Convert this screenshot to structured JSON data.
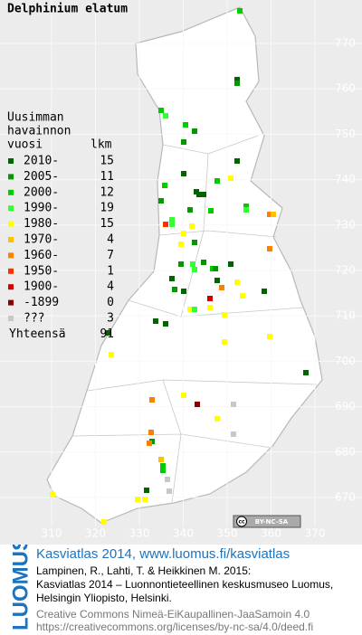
{
  "title": "Delphinium elatum",
  "legend": {
    "heading": [
      "Uusimman",
      "havainnon",
      "vuosi"
    ],
    "count_heading": "lkm",
    "rows": [
      {
        "label": "2010-",
        "count": 15,
        "color": "#006400"
      },
      {
        "label": "2005-",
        "count": 11,
        "color": "#009a00"
      },
      {
        "label": "2000-",
        "count": 12,
        "color": "#00cc00"
      },
      {
        "label": "1990-",
        "count": 19,
        "color": "#33ff33"
      },
      {
        "label": "1980-",
        "count": 15,
        "color": "#ffff00"
      },
      {
        "label": "1970-",
        "count": 4,
        "color": "#ffc000"
      },
      {
        "label": "1960-",
        "count": 7,
        "color": "#ff8000"
      },
      {
        "label": "1950-",
        "count": 1,
        "color": "#ff3000"
      },
      {
        "label": "1900-",
        "count": 4,
        "color": "#d00000"
      },
      {
        "label": "-1899",
        "count": 0,
        "color": "#8b0000"
      },
      {
        "label": "???",
        "count": 3,
        "color": "#c8c8c8"
      }
    ],
    "total": {
      "label": "Yhteensä",
      "count": 91
    }
  },
  "map": {
    "xticks": [
      310,
      320,
      330,
      340,
      350,
      360,
      370
    ],
    "yticks": [
      670,
      680,
      690,
      700,
      710,
      720,
      730,
      740,
      750,
      760,
      770
    ]
  },
  "badge": {
    "cc": "cc",
    "license": "BY-NC-SA"
  },
  "footer": {
    "side": "LUOMUS",
    "headline": "Kasviatlas 2014, www.luomus.fi/kasviatlas",
    "citation": [
      "Lampinen, R., Lahti, T. & Heikkinen M. 2015:",
      "Kasviatlas 2014 – Luonnontieteellinen keskusmuseo Luomus,",
      "Helsingin Yliopisto, Helsinki."
    ],
    "license": [
      "Creative Commons Nimeä-EiKaupallinen-JaaSamoin 4.0",
      "https://creativecommons.org/licenses/by-nc-sa/4.0/deed.fi"
    ]
  }
}
